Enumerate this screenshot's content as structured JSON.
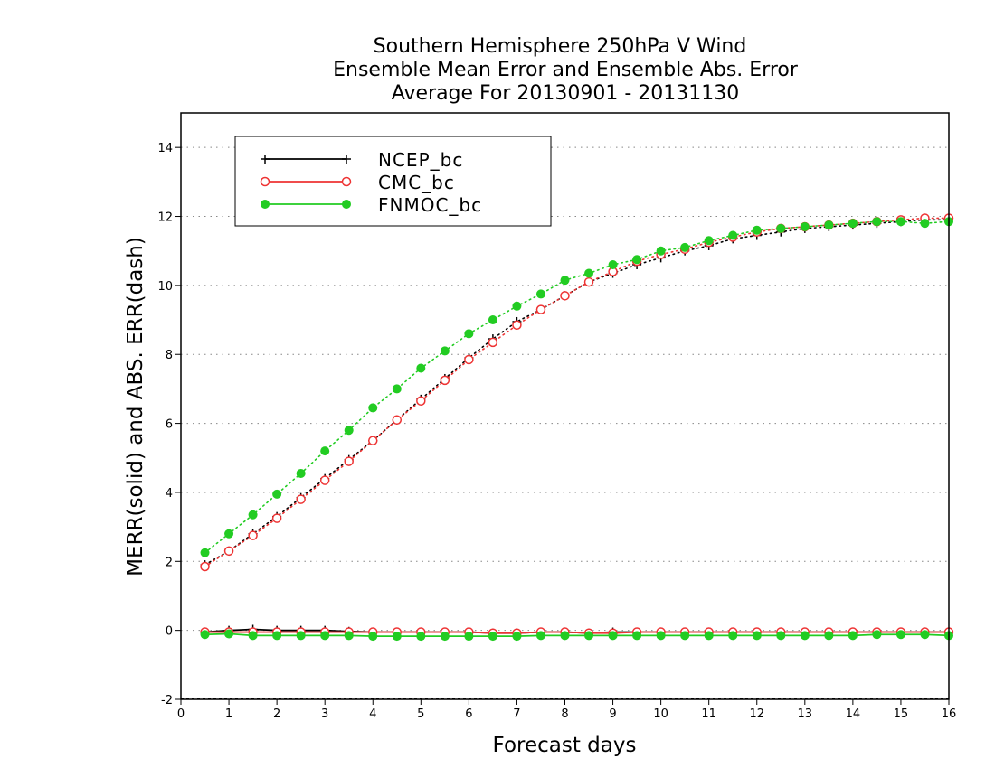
{
  "chart_data": {
    "type": "line",
    "title": [
      "Southern Hemisphere 250hPa V Wind",
      "Ensemble Mean Error and Ensemble Abs. Error",
      "Average For 20130901 - 20131130"
    ],
    "xlabel": "Forecast days",
    "ylabel": "MERR(solid) and ABS. ERR(dash)",
    "xlim": [
      0,
      16
    ],
    "ylim": [
      -2,
      15
    ],
    "xticks": [
      0,
      1,
      2,
      3,
      4,
      5,
      6,
      7,
      8,
      9,
      10,
      11,
      12,
      13,
      14,
      15,
      16
    ],
    "yticks": [
      -2,
      0,
      2,
      4,
      6,
      8,
      10,
      12,
      14
    ],
    "grid": "horizontal dotted",
    "legend_position": "top-left",
    "x": [
      0.5,
      1.0,
      1.5,
      2.0,
      2.5,
      3.0,
      3.5,
      4.0,
      4.5,
      5.0,
      5.5,
      6.0,
      6.5,
      7.0,
      7.5,
      8.0,
      8.5,
      9.0,
      9.5,
      10.0,
      10.5,
      11.0,
      11.5,
      12.0,
      12.5,
      13.0,
      13.5,
      14.0,
      14.5,
      15.0,
      15.5,
      16.0
    ],
    "series": [
      {
        "name": "NCEP_bc",
        "color": "#000000",
        "marker": "plus",
        "abs_err": [
          1.9,
          2.3,
          2.8,
          3.3,
          3.85,
          4.4,
          4.95,
          5.5,
          6.1,
          6.7,
          7.3,
          7.9,
          8.45,
          8.95,
          9.3,
          9.7,
          10.1,
          10.35,
          10.6,
          10.8,
          11.0,
          11.15,
          11.35,
          11.45,
          11.55,
          11.65,
          11.7,
          11.75,
          11.8,
          11.85,
          11.9,
          11.9
        ],
        "mean_err": [
          -0.05,
          0.0,
          0.03,
          0.0,
          0.0,
          0.0,
          -0.03,
          -0.05,
          -0.05,
          -0.05,
          -0.05,
          -0.05,
          -0.08,
          -0.08,
          -0.05,
          -0.05,
          -0.08,
          -0.05,
          -0.05,
          -0.05,
          -0.05,
          -0.05,
          -0.05,
          -0.05,
          -0.05,
          -0.05,
          -0.05,
          -0.05,
          -0.05,
          -0.05,
          -0.05,
          -0.05
        ]
      },
      {
        "name": "CMC_bc",
        "color": "#ee3333",
        "marker": "open-circle",
        "abs_err": [
          1.85,
          2.3,
          2.75,
          3.25,
          3.8,
          4.35,
          4.9,
          5.5,
          6.1,
          6.65,
          7.25,
          7.85,
          8.35,
          8.85,
          9.3,
          9.7,
          10.1,
          10.4,
          10.7,
          10.9,
          11.05,
          11.25,
          11.4,
          11.55,
          11.65,
          11.7,
          11.75,
          11.8,
          11.85,
          11.9,
          11.95,
          11.95
        ],
        "mean_err": [
          -0.05,
          -0.05,
          -0.05,
          -0.05,
          -0.05,
          -0.05,
          -0.05,
          -0.05,
          -0.05,
          -0.05,
          -0.05,
          -0.05,
          -0.08,
          -0.08,
          -0.05,
          -0.05,
          -0.08,
          -0.08,
          -0.05,
          -0.05,
          -0.05,
          -0.05,
          -0.05,
          -0.05,
          -0.05,
          -0.05,
          -0.05,
          -0.05,
          -0.05,
          -0.05,
          -0.05,
          -0.05
        ]
      },
      {
        "name": "FNMOC_bc",
        "color": "#22cc22",
        "marker": "filled-circle",
        "abs_err": [
          2.25,
          2.8,
          3.35,
          3.95,
          4.55,
          5.2,
          5.8,
          6.45,
          7.0,
          7.6,
          8.1,
          8.6,
          9.0,
          9.4,
          9.75,
          10.15,
          10.35,
          10.6,
          10.75,
          11.0,
          11.1,
          11.3,
          11.45,
          11.6,
          11.65,
          11.7,
          11.75,
          11.8,
          11.85,
          11.85,
          11.8,
          11.85
        ],
        "mean_err": [
          -0.12,
          -0.1,
          -0.15,
          -0.15,
          -0.15,
          -0.15,
          -0.15,
          -0.17,
          -0.17,
          -0.17,
          -0.17,
          -0.17,
          -0.17,
          -0.17,
          -0.15,
          -0.15,
          -0.15,
          -0.15,
          -0.15,
          -0.15,
          -0.15,
          -0.15,
          -0.15,
          -0.15,
          -0.15,
          -0.15,
          -0.15,
          -0.15,
          -0.12,
          -0.12,
          -0.12,
          -0.15
        ]
      }
    ]
  }
}
